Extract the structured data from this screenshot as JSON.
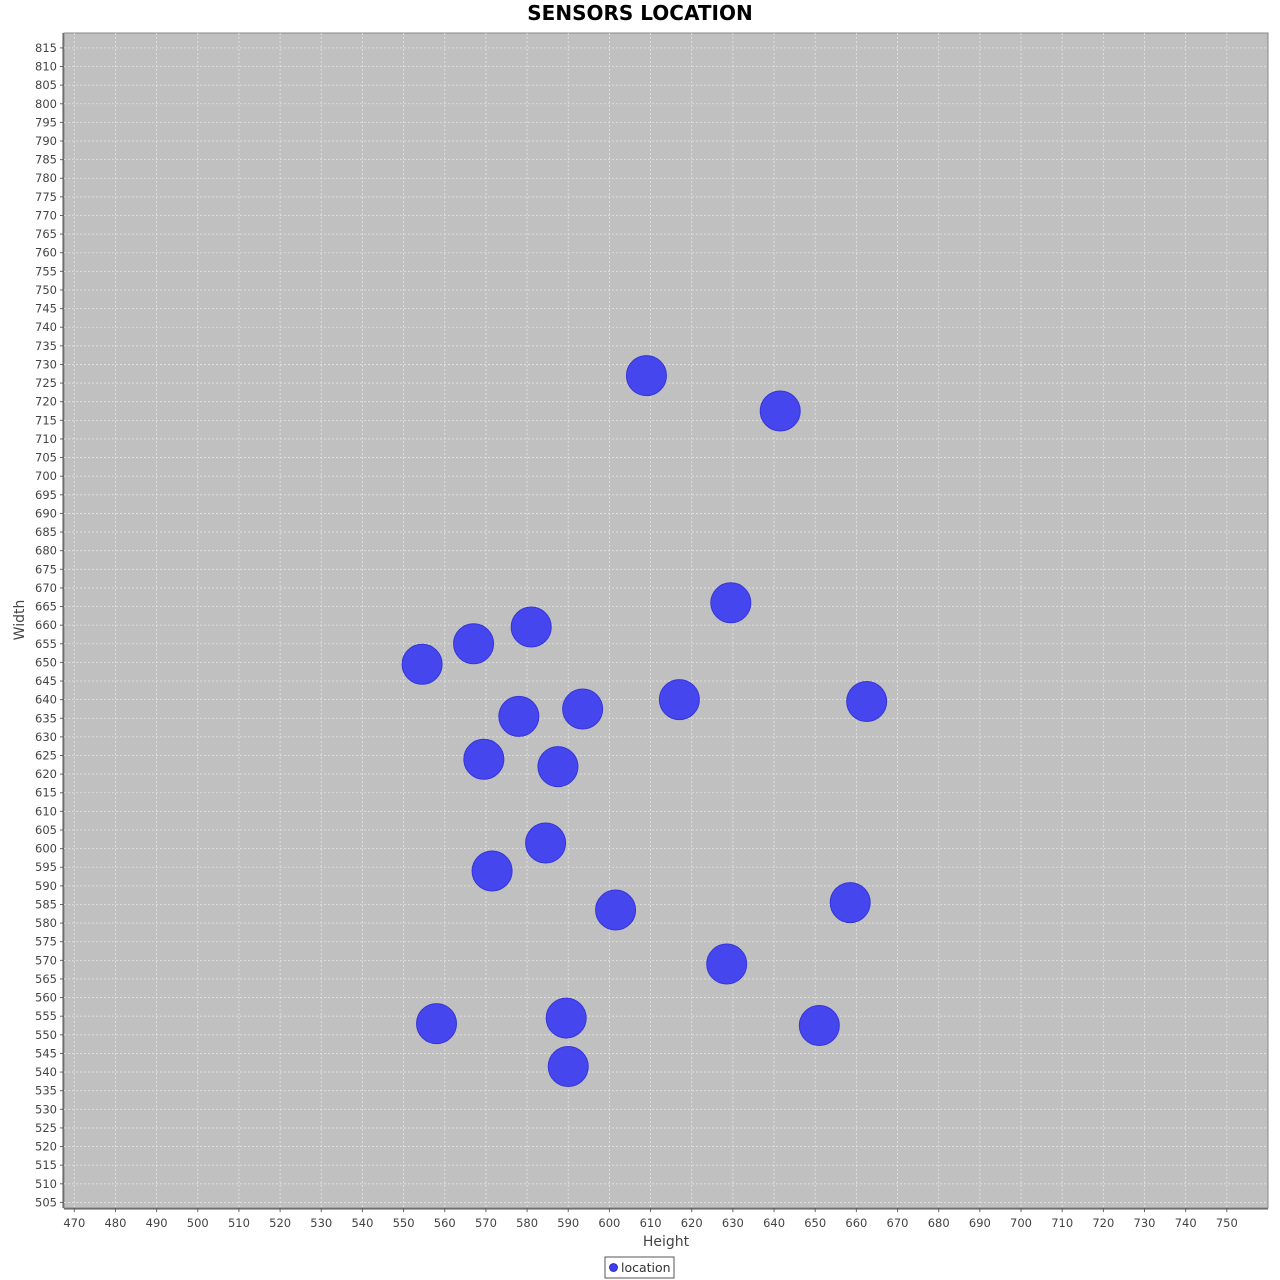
{
  "chart_data": {
    "type": "scatter",
    "title": "SENSORS LOCATION",
    "xlabel": "Height",
    "ylabel": "Width",
    "xlim": [
      467.5,
      760
    ],
    "ylim": [
      503.5,
      819
    ],
    "x_tick_step": 10,
    "x_tick_start": 470,
    "x_tick_end": 750,
    "y_tick_step": 5,
    "y_tick_start": 505,
    "y_tick_end": 815,
    "grid": true,
    "legend_placement": "bottom",
    "series": [
      {
        "name": "location",
        "color": "#3f3ff0",
        "points": [
          {
            "x": 609,
            "y": 727
          },
          {
            "x": 641.5,
            "y": 717.5
          },
          {
            "x": 629.5,
            "y": 666
          },
          {
            "x": 581,
            "y": 659.5
          },
          {
            "x": 567,
            "y": 655
          },
          {
            "x": 554.5,
            "y": 649.5
          },
          {
            "x": 617,
            "y": 640
          },
          {
            "x": 662.5,
            "y": 639.5
          },
          {
            "x": 593.5,
            "y": 637.5
          },
          {
            "x": 578,
            "y": 635.5
          },
          {
            "x": 569.5,
            "y": 624
          },
          {
            "x": 587.5,
            "y": 622
          },
          {
            "x": 584.5,
            "y": 601.5
          },
          {
            "x": 571.5,
            "y": 594
          },
          {
            "x": 658.5,
            "y": 585.5
          },
          {
            "x": 601.5,
            "y": 583.5
          },
          {
            "x": 628.5,
            "y": 569
          },
          {
            "x": 589.5,
            "y": 554.5
          },
          {
            "x": 558,
            "y": 553
          },
          {
            "x": 651,
            "y": 552.5
          },
          {
            "x": 590,
            "y": 541.5
          }
        ]
      }
    ]
  },
  "colors": {
    "plot_background": "#c0c0c0",
    "gridline": "#e4e4e4",
    "marker": "#3f3ff0"
  }
}
